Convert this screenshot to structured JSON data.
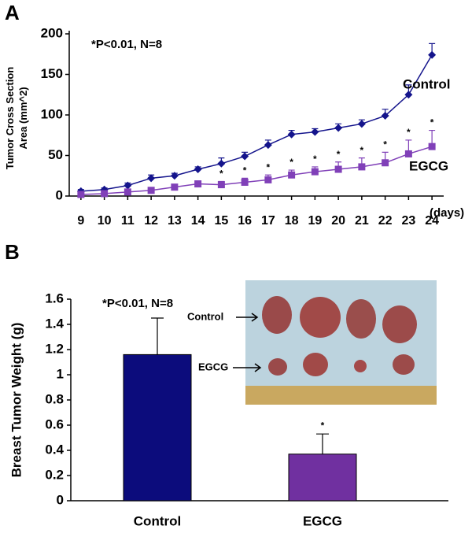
{
  "chart_data": [
    {
      "type": "line",
      "panel": "A",
      "y_label": [
        "Tumor Cross Section",
        "Area (mm^2)"
      ],
      "x_label": "(days)",
      "annotation": "*P<0.01, N=8",
      "x": [
        9,
        10,
        11,
        12,
        13,
        14,
        15,
        16,
        17,
        18,
        19,
        20,
        21,
        22,
        23,
        24
      ],
      "series": [
        {
          "name": "Control",
          "color": "#14148c",
          "marker": "diamond",
          "values": [
            6,
            8,
            13,
            22,
            25,
            33,
            40,
            49,
            63,
            76,
            79,
            84,
            89,
            99,
            125,
            174
          ],
          "errors": [
            2,
            2,
            3,
            4,
            3,
            3,
            7,
            5,
            6,
            5,
            4,
            5,
            5,
            8,
            12,
            14
          ]
        },
        {
          "name": "EGCG",
          "color": "#8040b8",
          "marker": "square",
          "values": [
            2,
            3,
            5,
            7,
            11,
            15,
            14,
            17,
            20,
            26,
            30,
            33,
            36,
            41,
            52,
            61
          ],
          "errors": [
            1,
            1,
            2,
            2,
            2,
            3,
            4,
            5,
            6,
            6,
            6,
            9,
            11,
            13,
            17,
            20
          ]
        }
      ],
      "significance_label": "*",
      "significant_x": [
        15,
        16,
        17,
        18,
        19,
        20,
        21,
        22,
        23,
        24
      ],
      "xlim": [
        8.5,
        24.5
      ],
      "xticks": [
        9,
        10,
        11,
        12,
        13,
        14,
        15,
        16,
        17,
        18,
        19,
        20,
        21,
        22,
        23,
        24
      ],
      "ylim": [
        0,
        200
      ],
      "yticks": [
        0,
        50,
        100,
        150,
        200
      ]
    },
    {
      "type": "bar",
      "panel": "B",
      "y_label": "Breast Tumor Weight (g)",
      "annotation": "*P<0.01, N=8",
      "categories": [
        "Control",
        "EGCG"
      ],
      "values": [
        1.16,
        0.37
      ],
      "errors": [
        0.29,
        0.16
      ],
      "colors": [
        "#0c0c7c",
        "#7030a0"
      ],
      "significance_label": "*",
      "significant": [
        "EGCG"
      ],
      "photo_labels": [
        "Control",
        "EGCG"
      ],
      "ylim": [
        0,
        1.6
      ],
      "yticks": [
        0,
        0.2,
        0.4,
        0.6,
        0.8,
        1,
        1.2,
        1.4,
        1.6
      ]
    }
  ]
}
